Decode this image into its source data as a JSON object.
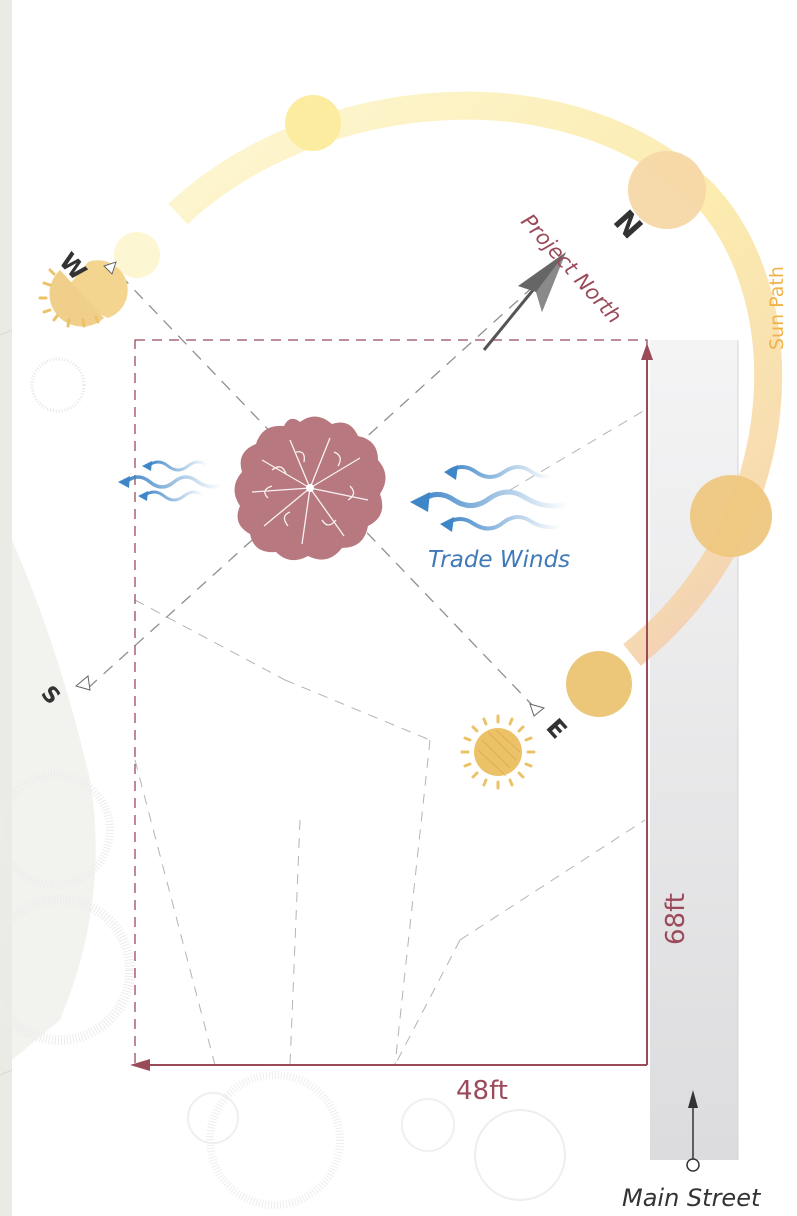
{
  "compass": {
    "north": "N",
    "south": "S",
    "east": "E",
    "west": "W",
    "project_north": "Project North"
  },
  "labels": {
    "sun_path": "Sun Path",
    "trade_winds": "Trade Winds",
    "main_street": "Main Street"
  },
  "dimensions": {
    "width": "48ft",
    "depth": "68ft"
  },
  "colors": {
    "property_line": "#9b4a5a",
    "tree": "#b87880",
    "wind": "#3f86c8",
    "sun": "#ecc268",
    "sun_path": "#fbe89a",
    "street": "#e3e3e5",
    "compass_text": "#333333",
    "grid_line": "#a6a6a6"
  },
  "icons": [
    "sun-icon",
    "wind-icon",
    "tree-icon",
    "north-arrow-icon",
    "street-arrow-icon"
  ]
}
